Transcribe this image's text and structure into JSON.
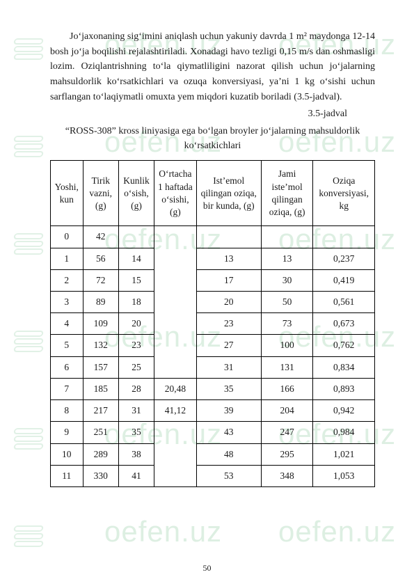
{
  "paragraph": "Jo‘jaxonaning sig‘imini aniqlash uchun yakuniy davrda 1 m² maydonga 12-14 bosh jo‘ja boqilishi rejalashtiriladi. Xonadagi havo tezligi 0,15 m/s dan oshmasligi lozim. Oziqlantrishning to‘la qiymatliligini nazorat qilish uchun jo‘jalarning mahsuldorlik ko‘rsatkichlari va ozuqa konversiyasi, ya’ni 1 kg o‘sishi uchun sarflangan to‘laqiymatli omuxta yem miqdori kuzatib boriladi (3.5-jadval).",
  "table_label": "3.5-jadval",
  "table_title_1": "“ROSS-308” kross liniyasiga ega bo‘lgan broyler jo‘jalarning mahsuldorlik",
  "table_title_2": "ko‘rsatkichlari",
  "page_number": "50",
  "watermark_text": "oefen.uz",
  "columns": {
    "c0": "Yoshi, kun",
    "c1": "Tirik vazni, (g)",
    "c2": "Kunlik o‘sish, (g)",
    "c3": "O‘rtacha 1 haftada o‘sishi, (g)",
    "c4": "Ist’emol qilingan oziqa, bir kunda, (g)",
    "c5": "Jami iste’mol qilingan oziqa, (g)",
    "c6": "Oziqa konversiyasi, kg"
  },
  "merged": {
    "a": "20,48",
    "b": "41,12"
  },
  "rows": [
    {
      "yoshi": "0",
      "tirik": "42",
      "kunlik": "",
      "ist": "",
      "jami": "",
      "konv": ""
    },
    {
      "yoshi": "1",
      "tirik": "56",
      "kunlik": "14",
      "ist": "13",
      "jami": "13",
      "konv": "0,237"
    },
    {
      "yoshi": "2",
      "tirik": "72",
      "kunlik": "15",
      "ist": "17",
      "jami": "30",
      "konv": "0,419"
    },
    {
      "yoshi": "3",
      "tirik": "89",
      "kunlik": "18",
      "ist": "20",
      "jami": "50",
      "konv": "0,561"
    },
    {
      "yoshi": "4",
      "tirik": "109",
      "kunlik": "20",
      "ist": "23",
      "jami": "73",
      "konv": "0,673"
    },
    {
      "yoshi": "5",
      "tirik": "132",
      "kunlik": "23",
      "ist": "27",
      "jami": "100",
      "konv": "0,762"
    },
    {
      "yoshi": "6",
      "tirik": "157",
      "kunlik": "25",
      "ist": "31",
      "jami": "131",
      "konv": "0,834"
    },
    {
      "yoshi": "7",
      "tirik": "185",
      "kunlik": "28",
      "ist": "35",
      "jami": "166",
      "konv": "0,893"
    },
    {
      "yoshi": "8",
      "tirik": "217",
      "kunlik": "31",
      "ist": "39",
      "jami": "204",
      "konv": "0,942"
    },
    {
      "yoshi": "9",
      "tirik": "251",
      "kunlik": "35",
      "ist": "43",
      "jami": "247",
      "konv": "0,984"
    },
    {
      "yoshi": "10",
      "tirik": "289",
      "kunlik": "38",
      "ist": "48",
      "jami": "295",
      "konv": "1,021"
    },
    {
      "yoshi": "11",
      "tirik": "330",
      "kunlik": "41",
      "ist": "53",
      "jami": "348",
      "konv": "1,053"
    }
  ],
  "col_widths": [
    "10%",
    "11%",
    "11%",
    "13%",
    "20%",
    "16%",
    "19%"
  ]
}
